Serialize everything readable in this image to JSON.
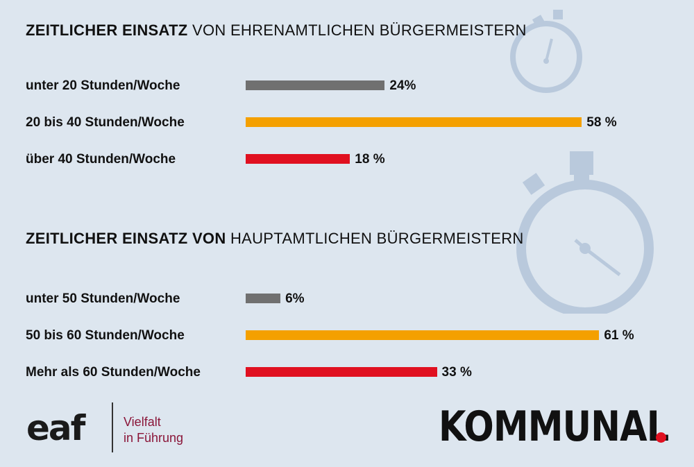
{
  "colors": {
    "background": "#dde6ef",
    "grey": "#707070",
    "orange": "#f4a000",
    "red": "#e01020",
    "watch": "#b9c9dc"
  },
  "chart_data": [
    {
      "type": "bar",
      "orientation": "horizontal",
      "title_bold": "ZEITLICHER EINSATZ",
      "title_light": "VON EHRENAMTLICHEN BÜRGERMEISTERN",
      "categories": [
        "unter 20 Stunden/Woche",
        "20 bis 40 Stunden/Woche",
        "über 40 Stunden/Woche"
      ],
      "values": [
        24,
        58,
        18
      ],
      "value_labels": [
        "24%",
        "58 %",
        "18 %"
      ],
      "bar_colors": [
        "#707070",
        "#f4a000",
        "#e01020"
      ],
      "xlim": [
        0,
        100
      ]
    },
    {
      "type": "bar",
      "orientation": "horizontal",
      "title_bold": "ZEITLICHER EINSATZ VON",
      "title_light": "HAUPTAMTLICHEN BÜRGERMEISTERN",
      "categories": [
        "unter 50 Stunden/Woche",
        "50 bis 60 Stunden/Woche",
        "Mehr als 60 Stunden/Woche"
      ],
      "values": [
        6,
        61,
        33
      ],
      "value_labels": [
        "6%",
        "61 %",
        "33 %"
      ],
      "bar_colors": [
        "#707070",
        "#f4a000",
        "#e01020"
      ],
      "xlim": [
        0,
        100
      ]
    }
  ],
  "footer": {
    "eaf_logo": "eaf",
    "tagline_line1": "Vielfalt",
    "tagline_line2": "in Führung",
    "kommunal_logo": "KOMMUNAL"
  }
}
